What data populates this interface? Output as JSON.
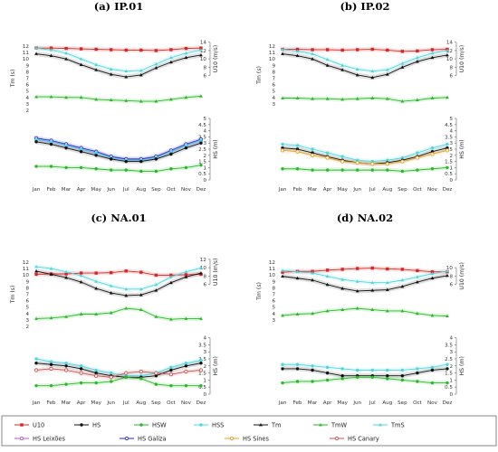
{
  "chart_data": [
    {
      "type": "line",
      "title": "(a) IP.01",
      "categories": [
        "Jan",
        "Feb",
        "Mar",
        "Apr",
        "May",
        "Jun",
        "Jul",
        "Aug",
        "Sep",
        "Oct",
        "Nov",
        "Dez"
      ],
      "axes": {
        "tm": {
          "label": "Tm (s)",
          "ticks": [
            2,
            3,
            4,
            5,
            6,
            7,
            8,
            9,
            10,
            11,
            12
          ]
        },
        "u10": {
          "label": "U10 (m/s)",
          "ticks": [
            6,
            8,
            10,
            12,
            14
          ]
        },
        "hs": {
          "label": "HS (m)",
          "ticks": [
            0,
            0.5,
            1,
            1.5,
            2,
            2.5,
            3,
            3.5,
            4,
            4.5,
            5
          ]
        }
      },
      "series": [
        {
          "key": "U10",
          "axis": "u10",
          "values": [
            12.6,
            12.6,
            12.5,
            12.4,
            12.3,
            12.2,
            12.1,
            12.1,
            12.0,
            12.2,
            12.5,
            12.6
          ]
        },
        {
          "key": "Tm",
          "axis": "tm",
          "values": [
            10.8,
            10.5,
            10.0,
            9.1,
            8.3,
            7.6,
            7.2,
            7.5,
            8.6,
            9.5,
            10.2,
            10.6
          ]
        },
        {
          "key": "TmS",
          "axis": "tm",
          "values": [
            11.7,
            11.4,
            10.9,
            10.0,
            9.1,
            8.4,
            8.1,
            8.2,
            9.2,
            10.2,
            10.9,
            11.4
          ]
        },
        {
          "key": "TmW",
          "axis": "tm",
          "values": [
            4.1,
            4.1,
            4.0,
            4.0,
            3.7,
            3.6,
            3.5,
            3.4,
            3.4,
            3.7,
            4.0,
            4.2
          ]
        },
        {
          "key": "HsLeixoes",
          "axis": "hs",
          "values": [
            3.3,
            3.1,
            2.8,
            2.5,
            2.2,
            1.8,
            1.6,
            1.6,
            1.8,
            2.3,
            2.8,
            3.2
          ]
        },
        {
          "key": "HsGaliza",
          "axis": "hs",
          "values": [
            3.4,
            3.2,
            2.9,
            2.6,
            2.3,
            1.9,
            1.7,
            1.7,
            1.9,
            2.4,
            2.9,
            3.3
          ]
        },
        {
          "key": "HsS",
          "axis": "hs",
          "values": [
            3.3,
            3.1,
            2.8,
            2.5,
            2.2,
            1.8,
            1.6,
            1.6,
            1.8,
            2.3,
            2.8,
            3.2
          ]
        },
        {
          "key": "Hs",
          "axis": "hs",
          "values": [
            3.1,
            2.9,
            2.6,
            2.3,
            2.0,
            1.7,
            1.5,
            1.5,
            1.7,
            2.1,
            2.6,
            3.0
          ]
        },
        {
          "key": "HsW",
          "axis": "hs",
          "values": [
            1.1,
            1.1,
            1.0,
            1.0,
            0.9,
            0.8,
            0.8,
            0.7,
            0.7,
            0.9,
            1.0,
            1.2
          ]
        }
      ]
    },
    {
      "type": "line",
      "title": "(b) IP.02",
      "categories": [
        "Jan",
        "Feb",
        "Mar",
        "Apr",
        "May",
        "Jun",
        "Jul",
        "Aug",
        "Sep",
        "Oct",
        "Nov",
        "Dez"
      ],
      "axes": {
        "tm": {
          "label": "Tm (s)",
          "ticks": [
            3,
            4,
            5,
            6,
            7,
            8,
            9,
            10,
            11,
            12
          ]
        },
        "u10": {
          "label": "U10 (m/s)",
          "ticks": [
            6,
            8,
            10,
            12,
            14
          ]
        },
        "hs": {
          "label": "HS (m)",
          "ticks": [
            0,
            0.5,
            1,
            1.5,
            2,
            2.5,
            3,
            3.5,
            4,
            4.5,
            5
          ]
        }
      },
      "series": [
        {
          "key": "U10",
          "axis": "u10",
          "values": [
            12.3,
            12.3,
            12.2,
            12.2,
            12.1,
            12.2,
            12.3,
            12.1,
            11.8,
            11.9,
            12.2,
            12.3
          ]
        },
        {
          "key": "Tm",
          "axis": "tm",
          "values": [
            10.8,
            10.5,
            10.0,
            9.0,
            8.3,
            7.5,
            7.1,
            7.6,
            8.7,
            9.6,
            10.2,
            10.6
          ]
        },
        {
          "key": "TmS",
          "axis": "tm",
          "values": [
            11.5,
            11.2,
            10.8,
            9.9,
            9.0,
            8.4,
            8.1,
            8.3,
            9.3,
            10.2,
            10.9,
            11.3
          ]
        },
        {
          "key": "TmW",
          "axis": "tm",
          "values": [
            3.9,
            3.9,
            3.8,
            3.8,
            3.7,
            3.8,
            3.9,
            3.8,
            3.4,
            3.6,
            3.9,
            4.0
          ]
        },
        {
          "key": "HsS",
          "axis": "hs",
          "values": [
            2.9,
            2.8,
            2.5,
            2.2,
            1.9,
            1.6,
            1.5,
            1.6,
            1.8,
            2.2,
            2.6,
            2.9
          ]
        },
        {
          "key": "Hs",
          "axis": "hs",
          "values": [
            2.6,
            2.5,
            2.2,
            1.9,
            1.6,
            1.4,
            1.3,
            1.4,
            1.6,
            1.9,
            2.3,
            2.6
          ]
        },
        {
          "key": "HsSines",
          "axis": "hs",
          "values": [
            2.4,
            2.3,
            2.0,
            1.8,
            1.5,
            1.4,
            1.3,
            1.3,
            1.5,
            1.8,
            2.1,
            2.4
          ]
        },
        {
          "key": "HsW",
          "axis": "hs",
          "values": [
            0.9,
            0.9,
            0.8,
            0.8,
            0.8,
            0.8,
            0.8,
            0.8,
            0.7,
            0.8,
            0.9,
            1.0
          ]
        }
      ]
    },
    {
      "type": "line",
      "title": "(c) NA.01",
      "categories": [
        "Jan",
        "Feb",
        "Mar",
        "Apr",
        "May",
        "Jun",
        "Jul",
        "Aug",
        "Sep",
        "Oct",
        "Nov",
        "Dez"
      ],
      "axes": {
        "tm": {
          "label": "Tm (s)",
          "ticks": [
            2,
            3,
            4,
            5,
            6,
            7,
            8,
            9,
            10,
            11,
            12
          ]
        },
        "u10": {
          "label": "U10 (m/s)",
          "ticks": [
            6,
            8,
            10,
            12
          ]
        },
        "hs": {
          "label": "HS (m)",
          "ticks": [
            0,
            0.5,
            1,
            1.5,
            2,
            2.5,
            3,
            3.5,
            4
          ]
        }
      },
      "series": [
        {
          "key": "U10",
          "axis": "u10",
          "values": [
            8.4,
            8.5,
            8.5,
            8.7,
            8.7,
            8.8,
            9.2,
            8.9,
            8.2,
            8.2,
            8.3,
            8.4
          ]
        },
        {
          "key": "Tm",
          "axis": "tm",
          "values": [
            10.6,
            10.1,
            9.6,
            8.9,
            7.9,
            7.2,
            6.8,
            6.9,
            7.6,
            8.8,
            9.7,
            10.3
          ]
        },
        {
          "key": "TmS",
          "axis": "tm",
          "values": [
            11.3,
            11.0,
            10.5,
            9.9,
            9.0,
            8.3,
            7.8,
            7.8,
            8.5,
            9.7,
            10.5,
            11.1
          ]
        },
        {
          "key": "TmW",
          "axis": "tm",
          "values": [
            3.2,
            3.3,
            3.5,
            3.9,
            3.9,
            4.1,
            4.8,
            4.6,
            3.5,
            3.1,
            3.2,
            3.2
          ]
        },
        {
          "key": "HsS",
          "axis": "hs",
          "values": [
            2.5,
            2.3,
            2.2,
            2.0,
            1.7,
            1.5,
            1.3,
            1.3,
            1.5,
            1.9,
            2.2,
            2.4
          ]
        },
        {
          "key": "Hs",
          "axis": "hs",
          "values": [
            2.2,
            2.1,
            2.0,
            1.8,
            1.5,
            1.3,
            1.2,
            1.2,
            1.3,
            1.7,
            2.0,
            2.2
          ]
        },
        {
          "key": "HsCanary",
          "axis": "hs",
          "values": [
            1.7,
            1.8,
            1.7,
            1.5,
            1.3,
            1.2,
            1.5,
            1.6,
            1.5,
            1.4,
            1.6,
            1.7
          ]
        },
        {
          "key": "HsW",
          "axis": "hs",
          "values": [
            0.6,
            0.6,
            0.7,
            0.8,
            0.8,
            0.9,
            1.2,
            1.1,
            0.7,
            0.6,
            0.6,
            0.6
          ]
        }
      ]
    },
    {
      "type": "line",
      "title": "(d) NA.02",
      "categories": [
        "Jan",
        "Feb",
        "Mar",
        "Apr",
        "May",
        "Jun",
        "Jul",
        "Aug",
        "Sep",
        "Oct",
        "Nov",
        "Dez"
      ],
      "axes": {
        "tm": {
          "label": "Tm (s)",
          "ticks": [
            3,
            4,
            5,
            6,
            7,
            8,
            9,
            10,
            11,
            12
          ]
        },
        "u10": {
          "label": "U10 (m/s)",
          "ticks": [
            6,
            8,
            10
          ]
        },
        "hs": {
          "label": "HS (m)",
          "ticks": [
            0,
            0.5,
            1,
            1.5,
            2,
            2.5,
            3,
            3.5,
            4
          ]
        }
      },
      "series": [
        {
          "key": "U10",
          "axis": "u10",
          "values": [
            8.9,
            9.1,
            9.1,
            9.4,
            9.6,
            9.8,
            9.9,
            9.7,
            9.6,
            9.3,
            9.0,
            9.0
          ]
        },
        {
          "key": "Tm",
          "axis": "tm",
          "values": [
            9.8,
            9.5,
            9.2,
            8.5,
            7.9,
            7.5,
            7.6,
            7.7,
            8.2,
            8.9,
            9.5,
            9.9
          ]
        },
        {
          "key": "TmS",
          "axis": "tm",
          "values": [
            10.7,
            10.5,
            10.3,
            9.8,
            9.3,
            9.0,
            8.8,
            8.8,
            9.2,
            9.7,
            10.2,
            10.6
          ]
        },
        {
          "key": "TmW",
          "axis": "tm",
          "values": [
            3.7,
            3.9,
            4.0,
            4.4,
            4.6,
            4.8,
            4.6,
            4.4,
            4.4,
            4.0,
            3.7,
            3.6
          ]
        },
        {
          "key": "HsS",
          "axis": "hs",
          "values": [
            2.1,
            2.1,
            2.0,
            1.9,
            1.8,
            1.7,
            1.7,
            1.7,
            1.7,
            1.8,
            1.9,
            2.1
          ]
        },
        {
          "key": "Hs",
          "axis": "hs",
          "values": [
            1.8,
            1.8,
            1.7,
            1.5,
            1.3,
            1.3,
            1.3,
            1.3,
            1.3,
            1.5,
            1.7,
            1.8
          ]
        },
        {
          "key": "HsW",
          "axis": "hs",
          "values": [
            0.8,
            0.9,
            0.9,
            1.0,
            1.1,
            1.2,
            1.2,
            1.1,
            1.0,
            0.9,
            0.8,
            0.8
          ]
        }
      ]
    }
  ],
  "legend": {
    "items": [
      {
        "key": "U10",
        "text": "U10",
        "color": "#d92525",
        "marker": "square"
      },
      {
        "key": "Hs",
        "text": "HS",
        "color": "#111111",
        "marker": "circle"
      },
      {
        "key": "HsW",
        "text": "HSW",
        "color": "#28b828",
        "marker": "circle"
      },
      {
        "key": "HsS",
        "text": "HSS",
        "color": "#4fd6e0",
        "marker": "circle"
      },
      {
        "key": "Tm",
        "text": "Tm",
        "color": "#111111",
        "marker": "triangle"
      },
      {
        "key": "TmW",
        "text": "TmW",
        "color": "#28b828",
        "marker": "triangle"
      },
      {
        "key": "TmS",
        "text": "TmS",
        "color": "#4fd6e0",
        "marker": "triangle"
      },
      {
        "key": "HsLeixoes",
        "text": "HS Leixões",
        "color": "#b45ac8",
        "marker": "open-circle"
      },
      {
        "key": "HsGaliza",
        "text": "HS Galiza",
        "color": "#2a2ac8",
        "marker": "open-circle"
      },
      {
        "key": "HsSines",
        "text": "HS Sines",
        "color": "#e6a020",
        "marker": "open-circle"
      },
      {
        "key": "HsCanary",
        "text": "HS Canary",
        "color": "#c85050",
        "marker": "open-circle"
      }
    ]
  },
  "colors": {
    "U10": "#d92525",
    "Hs": "#111111",
    "HsW": "#28b828",
    "HsS": "#4fd6e0",
    "Tm": "#111111",
    "TmW": "#28b828",
    "TmS": "#4fd6e0",
    "HsLeixoes": "#b45ac8",
    "HsGaliza": "#2a2ac8",
    "HsSines": "#e6a020",
    "HsCanary": "#c85050"
  }
}
